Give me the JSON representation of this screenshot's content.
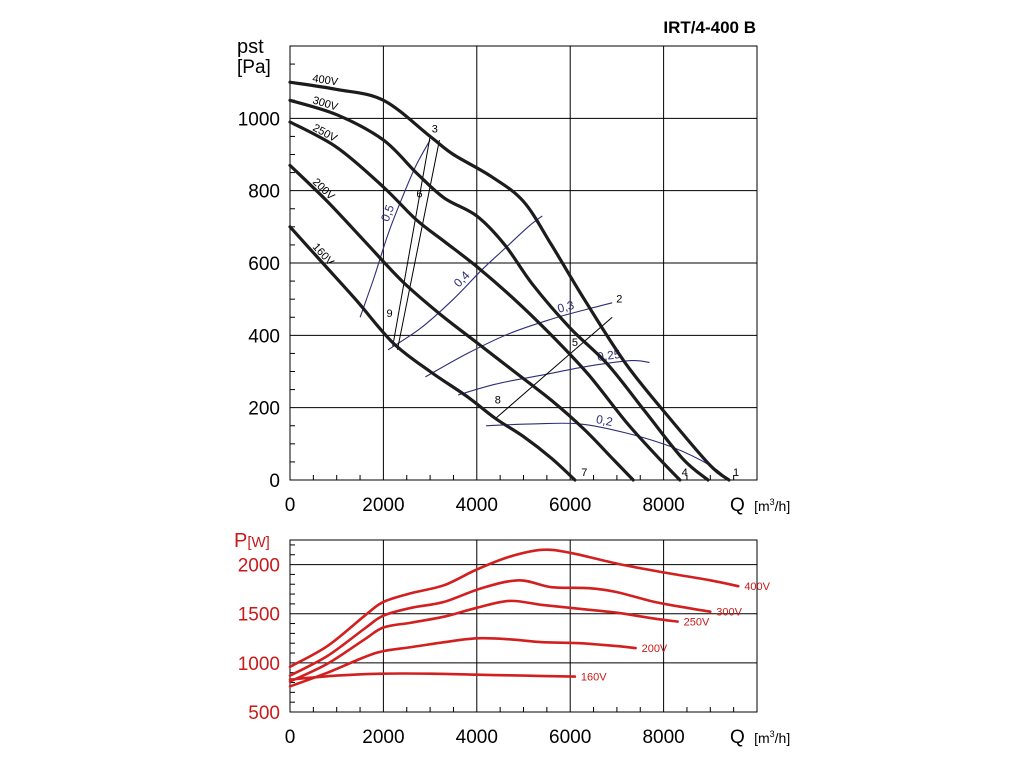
{
  "chart_data": [
    {
      "type": "line",
      "title": "IRT/4-400 B",
      "ylabel": "pst",
      "yunit": "[Pa]",
      "xlabel": "Q",
      "xunit_base": "[m",
      "xunit_exp": "3",
      "xunit_tail": "/h]",
      "xlim": [
        0,
        10000
      ],
      "ylim": [
        0,
        1200
      ],
      "xticks": [
        0,
        2000,
        4000,
        6000,
        8000
      ],
      "xtick_labels": [
        "0",
        "2000",
        "4000",
        "6000",
        "8000"
      ],
      "yticks": [
        0,
        200,
        400,
        600,
        800,
        1000
      ],
      "ytick_labels": [
        "0",
        "200",
        "400",
        "600",
        "800",
        "1000"
      ],
      "series": [
        {
          "name": "400V",
          "points": [
            [
              0,
              1100
            ],
            [
              1000,
              1080
            ],
            [
              2000,
              1050
            ],
            [
              3000,
              950
            ],
            [
              3500,
              900
            ],
            [
              4300,
              840
            ],
            [
              5000,
              770
            ],
            [
              5600,
              650
            ],
            [
              6300,
              500
            ],
            [
              7200,
              320
            ],
            [
              8200,
              160
            ],
            [
              9000,
              40
            ],
            [
              9400,
              0
            ]
          ]
        },
        {
          "name": "300V",
          "points": [
            [
              0,
              1050
            ],
            [
              1000,
              1010
            ],
            [
              2000,
              940
            ],
            [
              2700,
              850
            ],
            [
              3300,
              780
            ],
            [
              4000,
              730
            ],
            [
              4600,
              650
            ],
            [
              5200,
              540
            ],
            [
              6000,
              420
            ],
            [
              6800,
              320
            ],
            [
              7600,
              190
            ],
            [
              8400,
              60
            ],
            [
              8950,
              0
            ]
          ]
        },
        {
          "name": "250V",
          "points": [
            [
              0,
              990
            ],
            [
              1000,
              920
            ],
            [
              2000,
              810
            ],
            [
              2700,
              720
            ],
            [
              3300,
              660
            ],
            [
              4000,
              590
            ],
            [
              4800,
              500
            ],
            [
              5600,
              400
            ],
            [
              6400,
              290
            ],
            [
              7200,
              160
            ],
            [
              7900,
              60
            ],
            [
              8350,
              0
            ]
          ]
        },
        {
          "name": "200V",
          "points": [
            [
              0,
              870
            ],
            [
              800,
              770
            ],
            [
              1600,
              660
            ],
            [
              2400,
              550
            ],
            [
              3200,
              460
            ],
            [
              4000,
              380
            ],
            [
              4800,
              300
            ],
            [
              5600,
              220
            ],
            [
              6300,
              140
            ],
            [
              6900,
              60
            ],
            [
              7350,
              0
            ]
          ]
        },
        {
          "name": "160V",
          "points": [
            [
              0,
              700
            ],
            [
              700,
              600
            ],
            [
              1400,
              500
            ],
            [
              2200,
              380
            ],
            [
              3000,
              300
            ],
            [
              3800,
              230
            ],
            [
              4400,
              170
            ],
            [
              5000,
              120
            ],
            [
              5600,
              60
            ],
            [
              6100,
              0
            ]
          ]
        }
      ],
      "efficiency_curves": [
        {
          "label": "0,5",
          "points": [
            [
              1500,
              450
            ],
            [
              1800,
              560
            ],
            [
              2100,
              680
            ],
            [
              2400,
              780
            ],
            [
              2700,
              870
            ],
            [
              3000,
              940
            ]
          ]
        },
        {
          "label": "0,4",
          "points": [
            [
              2100,
              360
            ],
            [
              2800,
              420
            ],
            [
              3500,
              500
            ],
            [
              4100,
              580
            ],
            [
              4600,
              640
            ],
            [
              5100,
              700
            ],
            [
              5400,
              730
            ]
          ]
        },
        {
          "label": "0,3",
          "points": [
            [
              2900,
              285
            ],
            [
              3800,
              350
            ],
            [
              4700,
              405
            ],
            [
              5600,
              445
            ],
            [
              6300,
              470
            ],
            [
              6900,
              490
            ]
          ]
        },
        {
          "label": "0,25",
          "points": [
            [
              3600,
              235
            ],
            [
              4400,
              265
            ],
            [
              5400,
              290
            ],
            [
              6400,
              315
            ],
            [
              7300,
              330
            ],
            [
              7700,
              325
            ]
          ]
        },
        {
          "label": "0,2",
          "points": [
            [
              4200,
              150
            ],
            [
              5200,
              155
            ],
            [
              6200,
              155
            ],
            [
              7200,
              130
            ],
            [
              8200,
              90
            ],
            [
              9000,
              40
            ],
            [
              9400,
              0
            ]
          ]
        }
      ],
      "operating_lines": [
        {
          "from": [
            2200,
            370
          ],
          "to": [
            3000,
            950
          ]
        },
        {
          "from": [
            2300,
            360
          ],
          "to": [
            3200,
            940
          ]
        },
        {
          "from": [
            4400,
            170
          ],
          "to": [
            6900,
            450
          ]
        }
      ],
      "points": [
        {
          "label": "1",
          "x": 9400,
          "y": 0
        },
        {
          "label": "2",
          "x": 6900,
          "y": 480
        },
        {
          "label": "3",
          "x": 2950,
          "y": 950
        },
        {
          "label": "4",
          "x": 8300,
          "y": 0
        },
        {
          "label": "5",
          "x": 5950,
          "y": 360
        },
        {
          "label": "6",
          "x": 2620,
          "y": 770
        },
        {
          "label": "7",
          "x": 6150,
          "y": 0
        },
        {
          "label": "8",
          "x": 4300,
          "y": 200
        },
        {
          "label": "9",
          "x": 1980,
          "y": 440
        }
      ]
    },
    {
      "type": "line",
      "ylabel": "P",
      "yunit": "[W]",
      "xlabel": "Q",
      "xunit_base": "[m",
      "xunit_exp": "3",
      "xunit_tail": "/h]",
      "xlim": [
        0,
        10000
      ],
      "ylim": [
        500,
        2250
      ],
      "xticks": [
        0,
        2000,
        4000,
        6000,
        8000
      ],
      "xtick_labels": [
        "0",
        "2000",
        "4000",
        "6000",
        "8000"
      ],
      "yticks": [
        500,
        1000,
        1500,
        2000
      ],
      "ytick_labels": [
        "500",
        "1000",
        "1500",
        "2000"
      ],
      "series": [
        {
          "name": "400V",
          "points": [
            [
              0,
              960
            ],
            [
              800,
              1170
            ],
            [
              1600,
              1480
            ],
            [
              2000,
              1620
            ],
            [
              2600,
              1710
            ],
            [
              3300,
              1790
            ],
            [
              4000,
              1950
            ],
            [
              4700,
              2080
            ],
            [
              5400,
              2150
            ],
            [
              6000,
              2120
            ],
            [
              7000,
              2010
            ],
            [
              8000,
              1920
            ],
            [
              9000,
              1840
            ],
            [
              9600,
              1780
            ]
          ]
        },
        {
          "name": "300V",
          "points": [
            [
              0,
              870
            ],
            [
              800,
              1070
            ],
            [
              1600,
              1350
            ],
            [
              2000,
              1480
            ],
            [
              2600,
              1560
            ],
            [
              3300,
              1620
            ],
            [
              4100,
              1760
            ],
            [
              4900,
              1840
            ],
            [
              5600,
              1770
            ],
            [
              6400,
              1760
            ],
            [
              7000,
              1720
            ],
            [
              7800,
              1620
            ],
            [
              8500,
              1560
            ],
            [
              9000,
              1520
            ]
          ]
        },
        {
          "name": "250V",
          "points": [
            [
              0,
              810
            ],
            [
              800,
              990
            ],
            [
              1600,
              1240
            ],
            [
              2000,
              1360
            ],
            [
              2600,
              1410
            ],
            [
              3300,
              1470
            ],
            [
              4000,
              1560
            ],
            [
              4700,
              1630
            ],
            [
              5400,
              1590
            ],
            [
              6200,
              1550
            ],
            [
              7000,
              1510
            ],
            [
              7800,
              1450
            ],
            [
              8300,
              1420
            ]
          ]
        },
        {
          "name": "200V",
          "points": [
            [
              0,
              760
            ],
            [
              800,
              900
            ],
            [
              1600,
              1060
            ],
            [
              2000,
              1120
            ],
            [
              2600,
              1160
            ],
            [
              3300,
              1210
            ],
            [
              4000,
              1250
            ],
            [
              4700,
              1240
            ],
            [
              5400,
              1210
            ],
            [
              6200,
              1200
            ],
            [
              7000,
              1170
            ],
            [
              7400,
              1150
            ]
          ]
        },
        {
          "name": "160V",
          "points": [
            [
              0,
              830
            ],
            [
              1000,
              870
            ],
            [
              2000,
              890
            ],
            [
              3000,
              890
            ],
            [
              4000,
              880
            ],
            [
              5000,
              870
            ],
            [
              6100,
              860
            ]
          ]
        }
      ]
    }
  ]
}
